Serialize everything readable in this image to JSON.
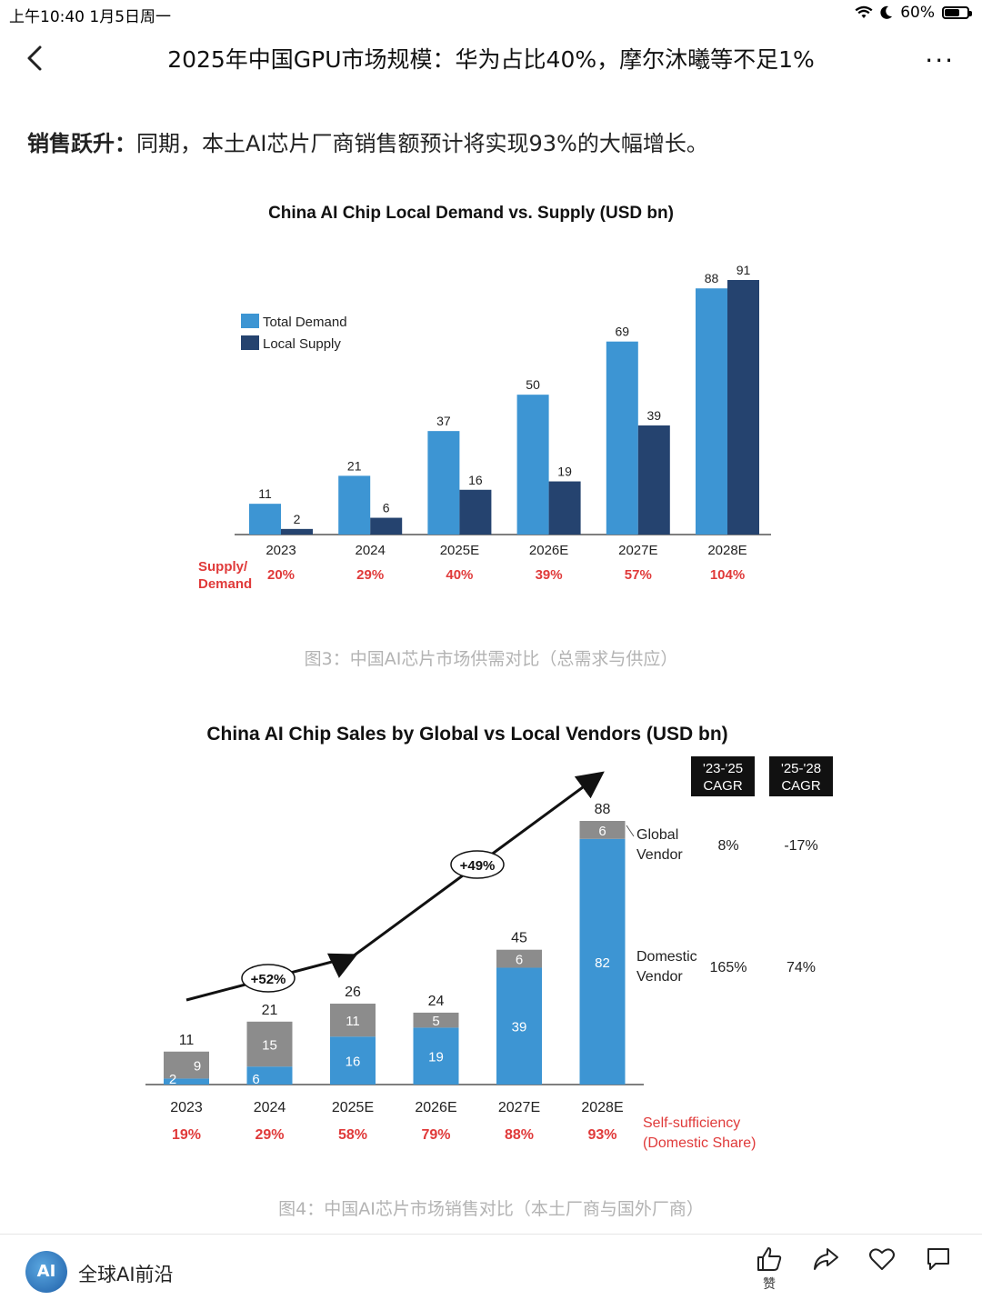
{
  "status_bar": {
    "time": "上午10:40  1月5日周一",
    "battery": "60%"
  },
  "nav": {
    "title": "2025年中国GPU市场规模：华为占比40%，摩尔沐曦等不足1%"
  },
  "article": {
    "lead_bold": "销售跃升：",
    "lead_text": "同期，本土AI芯片厂商销售额预计将实现93%的大幅增长。",
    "fig3_caption": "图3：中国AI芯片市场供需对比（总需求与供应）",
    "fig4_caption": "图4：中国AI芯片市场销售对比（本土厂商与国外厂商）"
  },
  "chart_data": [
    {
      "type": "bar",
      "title": "China AI Chip Local Demand vs. Supply (USD bn)",
      "categories": [
        "2023",
        "2024",
        "2025E",
        "2026E",
        "2027E",
        "2028E"
      ],
      "series": [
        {
          "name": "Total Demand",
          "values": [
            11,
            21,
            37,
            50,
            69,
            88
          ],
          "color": "#3d95d3"
        },
        {
          "name": "Local Supply",
          "values": [
            2,
            6,
            16,
            19,
            39,
            91
          ],
          "color": "#25436f"
        }
      ],
      "ratio_label": "Supply/ Demand",
      "ratio_values": [
        "20%",
        "29%",
        "40%",
        "39%",
        "57%",
        "104%"
      ],
      "ylim": [
        0,
        95
      ],
      "legend": "top-left"
    },
    {
      "type": "bar",
      "stacked": true,
      "title": "China AI Chip Sales by Global vs Local Vendors (USD bn)",
      "categories": [
        "2023",
        "2024",
        "2025E",
        "2026E",
        "2027E",
        "2028E"
      ],
      "series": [
        {
          "name": "Domestic Vendor",
          "values": [
            2,
            6,
            16,
            19,
            39,
            82
          ],
          "color": "#3d95d3"
        },
        {
          "name": "Global Vendor",
          "values": [
            9,
            15,
            11,
            5,
            6,
            6
          ],
          "color": "#8c8c8c"
        }
      ],
      "totals": [
        11,
        21,
        26,
        24,
        45,
        88
      ],
      "growth_labels": [
        "+52%",
        "+49%"
      ],
      "cagr_headers": [
        "'23-'25 CAGR",
        "'25-'28 CAGR"
      ],
      "cagr": [
        {
          "name": "Global Vendor",
          "values": [
            "8%",
            "-17%"
          ]
        },
        {
          "name": "Domestic Vendor",
          "values": [
            "165%",
            "74%"
          ]
        }
      ],
      "share_label": "Self-sufficiency (Domestic Share)",
      "share_values": [
        "19%",
        "29%",
        "58%",
        "79%",
        "88%",
        "93%"
      ],
      "ylim": [
        0,
        90
      ]
    }
  ],
  "bottom_bar": {
    "account_name": "全球AI前沿",
    "avatar_text": "AI",
    "like_label": "赞"
  },
  "colors": {
    "red": "#e03a3a",
    "light_blue": "#3d95d3",
    "dark_blue": "#25436f",
    "gray": "#8c8c8c"
  }
}
